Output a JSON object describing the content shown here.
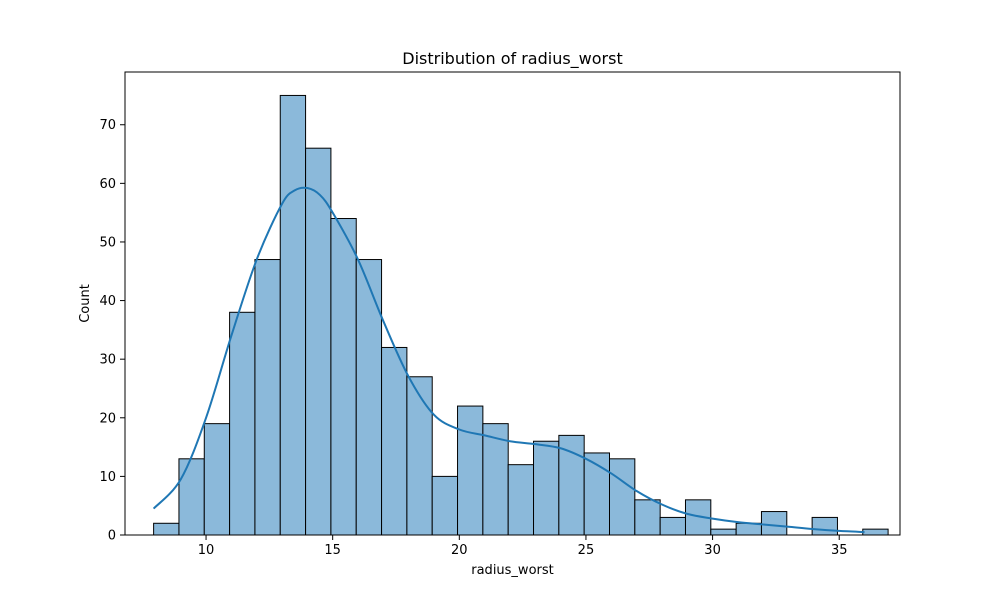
{
  "chart_data": {
    "type": "bar",
    "title": "Distribution of radius_worst",
    "xlabel": "radius_worst",
    "ylabel": "Count",
    "xlim": [
      6.8,
      37.4
    ],
    "ylim": [
      0,
      79
    ],
    "x_ticks": [
      10,
      15,
      20,
      25,
      30,
      35
    ],
    "y_ticks": [
      0,
      10,
      20,
      30,
      40,
      50,
      60,
      70
    ],
    "bin_edges": [
      7.93,
      8.93,
      9.93,
      10.93,
      11.93,
      12.93,
      13.93,
      14.93,
      15.93,
      16.93,
      17.93,
      18.93,
      19.93,
      20.93,
      21.93,
      22.93,
      23.93,
      24.93,
      25.93,
      26.93,
      27.93,
      28.93,
      29.93,
      30.93,
      31.93,
      32.93,
      33.93,
      34.93,
      35.93,
      36.93
    ],
    "counts": [
      2,
      13,
      19,
      38,
      47,
      75,
      66,
      54,
      47,
      32,
      27,
      10,
      22,
      19,
      12,
      16,
      17,
      14,
      13,
      6,
      3,
      6,
      1,
      2,
      4,
      0,
      3,
      0,
      1
    ],
    "kde": {
      "x": [
        7.93,
        9.0,
        10.0,
        11.0,
        12.0,
        13.0,
        13.5,
        14.0,
        14.5,
        15.0,
        16.0,
        17.0,
        18.0,
        19.0,
        20.0,
        21.0,
        22.0,
        23.0,
        24.0,
        25.0,
        26.0,
        27.0,
        28.0,
        29.0,
        30.0,
        31.0,
        32.0,
        33.0,
        34.0,
        35.0,
        36.0
      ],
      "y": [
        4.5,
        9.5,
        20,
        34,
        47,
        56.5,
        58.8,
        59.2,
        58,
        55,
        47,
        36.5,
        27,
        20.5,
        18,
        17,
        16,
        15.5,
        14.8,
        13,
        10.5,
        7.5,
        5.2,
        3.6,
        2.8,
        2.2,
        1.8,
        1.4,
        1.0,
        0.7,
        0.5
      ]
    },
    "colors": {
      "bar_fill": "#8bb9da",
      "bar_edge": "#000000",
      "kde_line": "#1f77b4"
    },
    "grid": false,
    "legend": "none"
  }
}
